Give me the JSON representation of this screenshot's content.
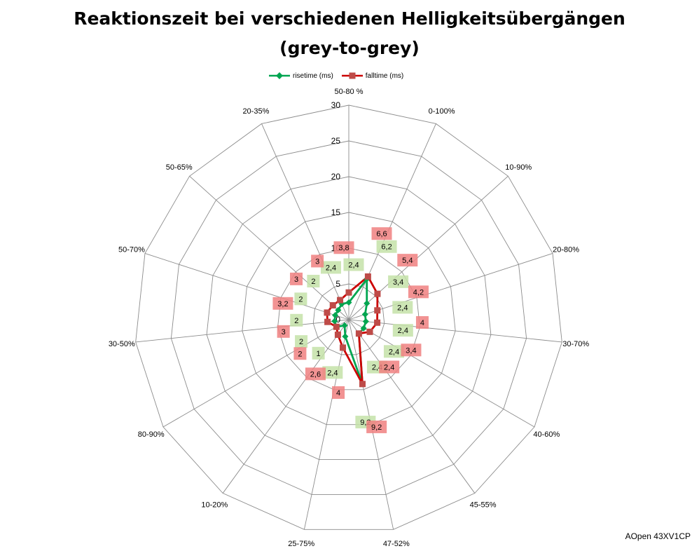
{
  "chart_data": {
    "type": "radar",
    "title": "Reaktionszeit bei verschiedenen Helligkeitsübergängen",
    "subtitle": "(grey-to-grey)",
    "categories": [
      "50-80 %",
      "0-100%",
      "10-90%",
      "20-80%",
      "30-70%",
      "40-60%",
      "45-55%",
      "47-52%",
      "25-75%",
      "10-20%",
      "80-90%",
      "30-50%",
      "50-70%",
      "50-65%",
      "20-35%"
    ],
    "radial_axis": {
      "min": 0,
      "max": 30,
      "step": 5,
      "ticks": [
        "0",
        "5",
        "10",
        "15",
        "20",
        "25",
        "30"
      ]
    },
    "grid": true,
    "legend_position": "top",
    "series": [
      {
        "name": "risetime (ms)",
        "color": "#00a550",
        "label_bg": "#c4e2a8",
        "values": [
          2.4,
          6.2,
          3.4,
          2.4,
          2.4,
          2.4,
          2.4,
          9.2,
          2.4,
          1,
          2,
          2,
          2,
          2,
          2.4
        ],
        "labels": [
          "2,4",
          "6,2",
          "3,4",
          "2,4",
          "2,4",
          "2,4",
          "2,4",
          "9,2",
          "2,4",
          "1",
          "2",
          "2",
          "2",
          "2",
          "2,4"
        ]
      },
      {
        "name": "falltime (ms)",
        "color": "#cc0000",
        "label_bg": "#f08080",
        "values": [
          3.8,
          6.6,
          5.4,
          4.2,
          4,
          3.4,
          2.4,
          9.2,
          4,
          2.6,
          2,
          3,
          3.2,
          3,
          3
        ],
        "labels": [
          "3,8",
          "6,6",
          "5,4",
          "4,2",
          "4",
          "3,4",
          "2,4",
          "9,2",
          "4",
          "2,6",
          "2",
          "3",
          "3,2",
          "3",
          "3"
        ]
      }
    ]
  },
  "watermark": "AOpen 43XV1CP"
}
